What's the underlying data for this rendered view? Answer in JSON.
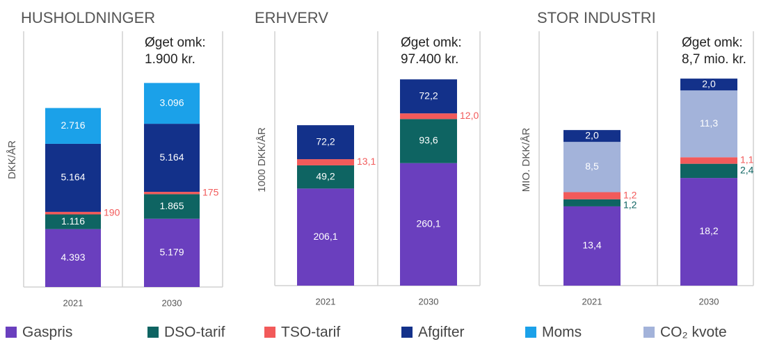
{
  "chart_data": [
    {
      "type": "bar",
      "stacked": true,
      "title": "HUSHOLDNINGER",
      "ylabel": "DKK/ÅR",
      "annotation": [
        "Øget omk:",
        "1.900 kr."
      ],
      "categories": [
        "2021",
        "2030"
      ],
      "ylim": [
        0,
        19400
      ],
      "series": [
        {
          "name": "Gaspris",
          "color": "#6a3fbe",
          "values": [
            4393,
            5179
          ],
          "value_labels": [
            "4.393",
            "5.179"
          ]
        },
        {
          "name": "DSO-tarif",
          "color": "#0e6462",
          "values": [
            1116,
            1865
          ],
          "value_labels": [
            "1.116",
            "1.865"
          ]
        },
        {
          "name": "TSO-tarif",
          "color": "#f25a5a",
          "values": [
            190,
            175
          ],
          "label_position": "outside"
        },
        {
          "name": "Afgifter",
          "color": "#13318a",
          "values": [
            5164,
            5164
          ],
          "value_labels": [
            "5.164",
            "5.164"
          ]
        },
        {
          "name": "Moms",
          "color": "#1ba1e9",
          "values": [
            2716,
            3096
          ],
          "value_labels": [
            "2.716",
            "3.096"
          ]
        }
      ]
    },
    {
      "type": "bar",
      "stacked": true,
      "title": "ERHVERV",
      "ylabel": "1000 DKK/ÅR",
      "annotation": [
        "Øget omk:",
        "97.400 kr."
      ],
      "categories": [
        "2021",
        "2030"
      ],
      "ylim": [
        0,
        540
      ],
      "series": [
        {
          "name": "Gaspris",
          "color": "#6a3fbe",
          "values": [
            206.1,
            260.1
          ],
          "value_labels": [
            "206,1",
            "260,1"
          ]
        },
        {
          "name": "DSO-tarif",
          "color": "#0e6462",
          "values": [
            49.2,
            93.6
          ],
          "value_labels": [
            "49,2",
            "93,6"
          ]
        },
        {
          "name": "TSO-tarif",
          "color": "#f25a5a",
          "values": [
            13.1,
            12.0
          ],
          "value_labels": [
            "13,1",
            "12,0"
          ],
          "label_position": "outside"
        },
        {
          "name": "Afgifter",
          "color": "#13318a",
          "values": [
            72.2,
            72.2
          ],
          "value_labels": [
            "72,2",
            "72,2"
          ]
        }
      ]
    },
    {
      "type": "bar",
      "stacked": true,
      "title": "STOR INDUSTRI",
      "ylabel": "MIO. DKK/ÅR",
      "annotation": [
        "Øget omk:",
        "8,7 mio. kr."
      ],
      "categories": [
        "2021",
        "2030"
      ],
      "ylim": [
        0,
        43
      ],
      "series": [
        {
          "name": "Gaspris",
          "color": "#6a3fbe",
          "values": [
            13.4,
            18.2
          ],
          "value_labels": [
            "13,4",
            "18,2"
          ]
        },
        {
          "name": "DSO-tarif",
          "color": "#0e6462",
          "values": [
            1.2,
            2.4
          ],
          "value_labels": [
            "1,2",
            "2,4"
          ],
          "label_position": "outside"
        },
        {
          "name": "TSO-tarif",
          "color": "#f25a5a",
          "values": [
            1.2,
            1.1
          ],
          "value_labels": [
            "1,2",
            "1,1"
          ],
          "label_position": "outside"
        },
        {
          "name": "CO₂ kvote",
          "color": "#a3b3da",
          "values": [
            8.5,
            11.3
          ],
          "value_labels": [
            "8,5",
            "11,3"
          ]
        },
        {
          "name": "Afgifter",
          "color": "#13318a",
          "values": [
            2.0,
            2.0
          ],
          "value_labels": [
            "2,0",
            "2,0"
          ]
        }
      ]
    }
  ]
}
